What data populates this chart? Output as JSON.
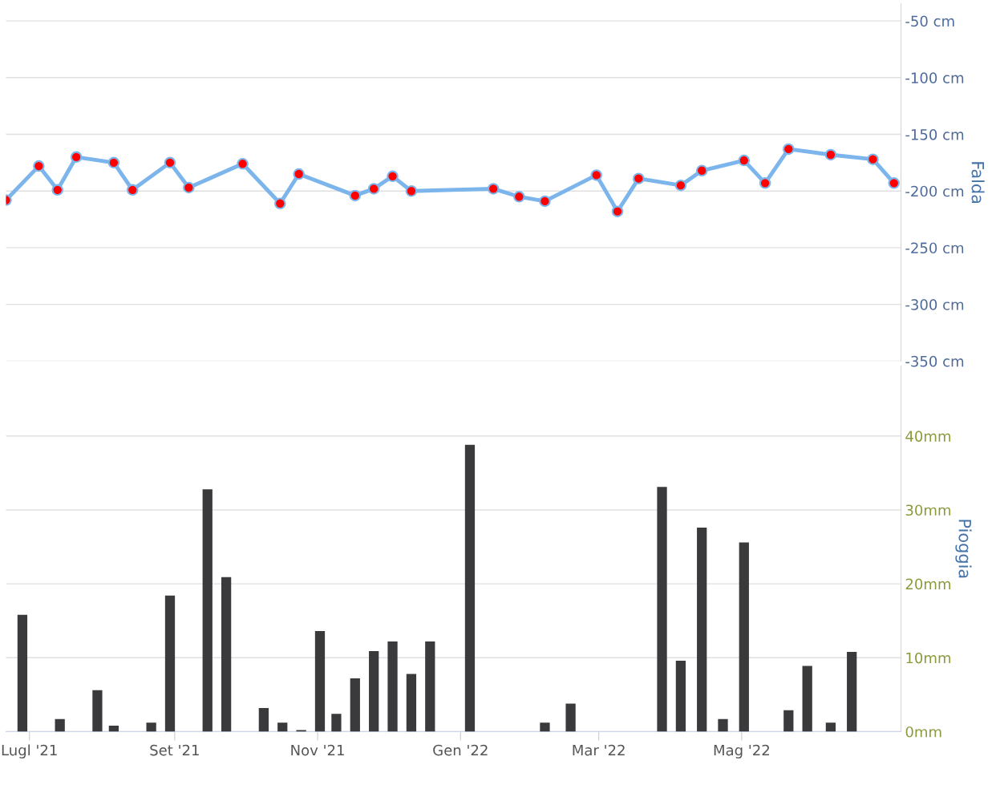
{
  "chart_data": [
    {
      "type": "line",
      "ylabel": "Falda",
      "xlim": [
        "2021-06-21",
        "2022-07-08"
      ],
      "ylim": [
        -350,
        -35
      ],
      "yticks": [
        {
          "value": -50,
          "label": "-50 cm"
        },
        {
          "value": -100,
          "label": "-100 cm"
        },
        {
          "value": -150,
          "label": "-150 cm"
        },
        {
          "value": -200,
          "label": "-200 cm"
        },
        {
          "value": -250,
          "label": "-250 cm"
        },
        {
          "value": -300,
          "label": "-300 cm"
        },
        {
          "value": -350,
          "label": "-350 cm"
        }
      ],
      "grid": "y",
      "tick_labels": "y",
      "marker": "circle",
      "line_style": "solid",
      "x": [
        "2021-06-21",
        "2021-07-05",
        "2021-07-13",
        "2021-07-21",
        "2021-08-06",
        "2021-08-14",
        "2021-08-30",
        "2021-09-07",
        "2021-09-30",
        "2021-10-16",
        "2021-10-24",
        "2021-11-17",
        "2021-11-25",
        "2021-12-03",
        "2021-12-11",
        "2022-01-15",
        "2022-01-26",
        "2022-02-06",
        "2022-02-28",
        "2022-03-09",
        "2022-03-18",
        "2022-04-05",
        "2022-04-14",
        "2022-05-02",
        "2022-05-11",
        "2022-05-21",
        "2022-06-08",
        "2022-06-26",
        "2022-07-05"
      ],
      "series": [
        {
          "color": "#7cb5ec",
          "colors": [
            "#ff0000",
            "#ff0000",
            "#ff0000",
            "#ff0000",
            "#ff0000",
            "#ff0000",
            "#ff0000",
            "#ff0000",
            "#ff0000",
            "#ff0000",
            "#ff0000",
            "#ff0000",
            "#ff0000",
            "#ff0000",
            "#ff0000",
            "#ff0000",
            "#ff0000",
            "#ff0000",
            "#ff0000",
            "#ff0000",
            "#ff0000",
            "#ff0000",
            "#ff0000",
            "#ff0000",
            "#ff0000",
            "#ff0000",
            "#ff0000",
            "#ff0000",
            "#ff0000"
          ],
          "values": [
            -208,
            -178,
            -199,
            -170,
            -175,
            -199,
            -175,
            -197,
            -176,
            -211,
            -185,
            -204,
            -198,
            -187,
            -200,
            -198,
            -205,
            -209,
            -186,
            -218,
            -189,
            -195,
            -182,
            -173,
            -193,
            -163,
            -168,
            -172,
            -193
          ]
        }
      ]
    },
    {
      "type": "bar",
      "ylabel": "Pioggia",
      "xlim": [
        "2021-06-21",
        "2022-07-08"
      ],
      "ylim": [
        0,
        49.5
      ],
      "yticks": [
        {
          "value": 0,
          "label": "0mm"
        },
        {
          "value": 10,
          "label": "10mm"
        },
        {
          "value": 20,
          "label": "20mm"
        },
        {
          "value": 30,
          "label": "30mm"
        },
        {
          "value": 40,
          "label": "40mm"
        }
      ],
      "xticks": [
        {
          "value": "2021-07-01",
          "label": "Lugl '21"
        },
        {
          "value": "2021-09-01",
          "label": "Set '21"
        },
        {
          "value": "2021-11-01",
          "label": "Nov '21"
        },
        {
          "value": "2022-01-01",
          "label": "Gen '22"
        },
        {
          "value": "2022-03-01",
          "label": "Mar '22"
        },
        {
          "value": "2022-05-01",
          "label": "Mag '22"
        }
      ],
      "grid": "y",
      "x": [
        "2021-06-28",
        "2021-07-14",
        "2021-07-30",
        "2021-08-06",
        "2021-08-22",
        "2021-08-30",
        "2021-09-15",
        "2021-09-23",
        "2021-10-09",
        "2021-10-17",
        "2021-10-25",
        "2021-11-02",
        "2021-11-09",
        "2021-11-17",
        "2021-11-25",
        "2021-12-03",
        "2021-12-11",
        "2021-12-19",
        "2022-01-05",
        "2022-02-06",
        "2022-02-17",
        "2022-03-28",
        "2022-04-05",
        "2022-04-14",
        "2022-04-23",
        "2022-05-02",
        "2022-05-21",
        "2022-05-29",
        "2022-06-08",
        "2022-06-17"
      ],
      "series": [
        {
          "color": "#3a3a3c",
          "values": [
            15.8,
            1.7,
            5.6,
            0.8,
            1.2,
            18.4,
            32.8,
            20.9,
            3.2,
            1.2,
            0.2,
            13.6,
            2.4,
            7.2,
            10.9,
            12.2,
            7.8,
            12.2,
            38.8,
            1.2,
            3.8,
            33.1,
            9.6,
            27.6,
            1.7,
            25.6,
            2.9,
            8.9,
            1.2,
            10.8
          ]
        }
      ]
    }
  ]
}
